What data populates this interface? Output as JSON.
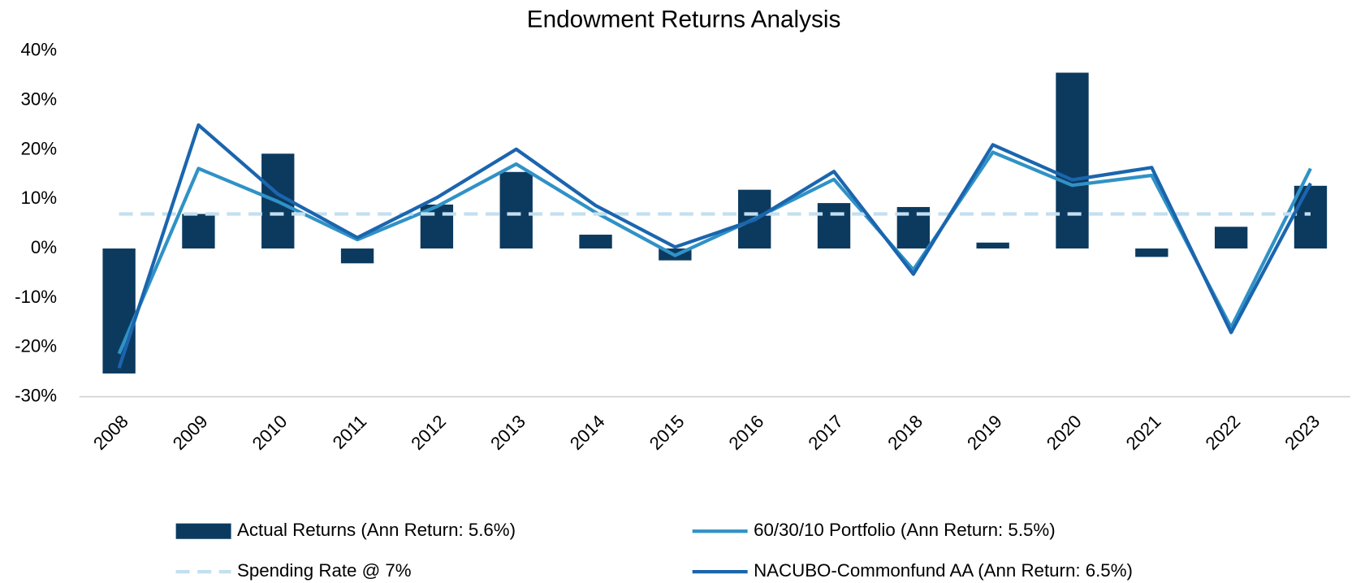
{
  "chart_data": {
    "type": "combo",
    "title": "Endowment Returns Analysis",
    "categories": [
      "2008",
      "2009",
      "2010",
      "2011",
      "2012",
      "2013",
      "2014",
      "2015",
      "2016",
      "2017",
      "2018",
      "2019",
      "2020",
      "2021",
      "2022",
      "2023"
    ],
    "ylim": [
      -30,
      40
    ],
    "yticks": [
      {
        "value": -30,
        "label": "-30%"
      },
      {
        "value": -20,
        "label": "-20%"
      },
      {
        "value": -10,
        "label": "-10%"
      },
      {
        "value": 0,
        "label": "0%"
      },
      {
        "value": 10,
        "label": "10%"
      },
      {
        "value": 20,
        "label": "20%"
      },
      {
        "value": 30,
        "label": "30%"
      },
      {
        "value": 40,
        "label": "40%"
      }
    ],
    "grid": false,
    "legend": "bottom",
    "series": [
      {
        "name": "Actual Returns (Ann Return: 5.6%)",
        "type": "bar",
        "color": "#0c3a5f",
        "values": [
          -25.3,
          7.0,
          19.2,
          -3.0,
          8.9,
          15.5,
          2.8,
          -2.4,
          11.9,
          9.2,
          8.4,
          1.2,
          35.6,
          -1.7,
          4.4,
          12.7
        ]
      },
      {
        "name": "60/30/10 Portfolio (Ann Return: 5.5%)",
        "type": "line",
        "color": "#3092c6",
        "values": [
          -21.3,
          16.2,
          9.5,
          1.8,
          8.5,
          17.1,
          7.3,
          -1.4,
          6.0,
          14.0,
          -4.3,
          19.5,
          12.8,
          14.8,
          -16.0,
          16.2
        ]
      },
      {
        "name": "Spending Rate @ 7%",
        "type": "line",
        "color": "#c3dff0",
        "dashed": true,
        "values": [
          7,
          7,
          7,
          7,
          7,
          7,
          7,
          7,
          7,
          7,
          7,
          7,
          7,
          7,
          7,
          7
        ]
      },
      {
        "name": "NACUBO-Commonfund AA (Ann Return: 6.5%)",
        "type": "line",
        "color": "#1b65ae",
        "values": [
          -24.2,
          25.0,
          11.0,
          2.2,
          10.3,
          20.1,
          8.7,
          0.3,
          5.8,
          15.6,
          -5.2,
          21.0,
          13.9,
          16.4,
          -17.0,
          13.2
        ]
      }
    ]
  }
}
